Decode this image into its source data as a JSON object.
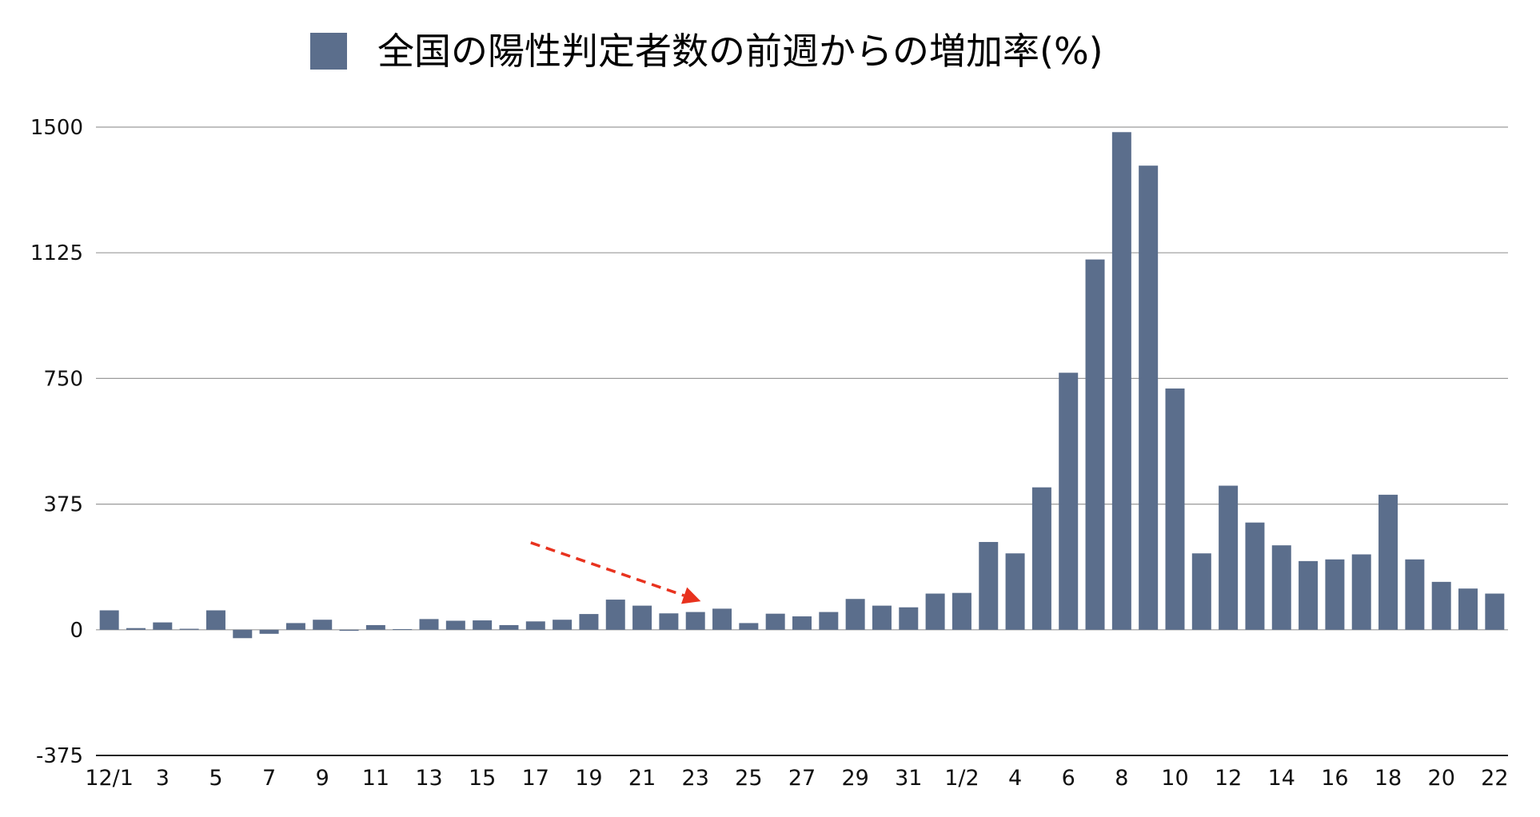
{
  "chart_data": {
    "type": "bar",
    "series": [
      {
        "name": "全国の陽性判定者数の前週からの増加率(%)",
        "color": "#5b6e8c",
        "values": [
          58,
          5,
          22,
          3,
          58,
          -25,
          -12,
          20,
          30,
          -3,
          14,
          2,
          32,
          27,
          28,
          14,
          25,
          30,
          47,
          90,
          72,
          49,
          53,
          63,
          20,
          48,
          40,
          53,
          92,
          72,
          67,
          108,
          110,
          262,
          228,
          425,
          767,
          1105,
          1485,
          1385,
          720,
          228,
          430,
          320,
          252,
          205,
          210,
          225,
          403,
          210,
          143,
          123,
          108
        ]
      }
    ],
    "categories": [
      "12/1",
      "2",
      "3",
      "4",
      "5",
      "6",
      "7",
      "8",
      "9",
      "10",
      "11",
      "12",
      "13",
      "14",
      "15",
      "16",
      "17",
      "18",
      "19",
      "20",
      "21",
      "22",
      "23",
      "24",
      "25",
      "26",
      "27",
      "28",
      "29",
      "30",
      "31",
      "1/1",
      "1/2",
      "3",
      "4",
      "5",
      "6",
      "7",
      "8",
      "9",
      "10",
      "11",
      "12",
      "13",
      "14",
      "15",
      "16",
      "17",
      "18",
      "19",
      "20",
      "21",
      "22"
    ],
    "tick_labels": [
      "12/1",
      "3",
      "5",
      "7",
      "9",
      "11",
      "13",
      "15",
      "17",
      "19",
      "21",
      "23",
      "25",
      "27",
      "29",
      "31",
      "1/2",
      "4",
      "6",
      "8",
      "10",
      "12",
      "14",
      "16",
      "18",
      "20",
      "22"
    ],
    "ylim": [
      -375,
      1500
    ],
    "yticks": [
      -375,
      0,
      375,
      750,
      1125,
      1500
    ],
    "xlabel": "",
    "ylabel": "",
    "grid": true,
    "legend_position": "top-center",
    "annotation": {
      "type": "trend-arrow",
      "color": "#e8321e",
      "from": {
        "x": "17",
        "y": 260
      },
      "to": {
        "x": "22",
        "y": 85
      }
    }
  }
}
